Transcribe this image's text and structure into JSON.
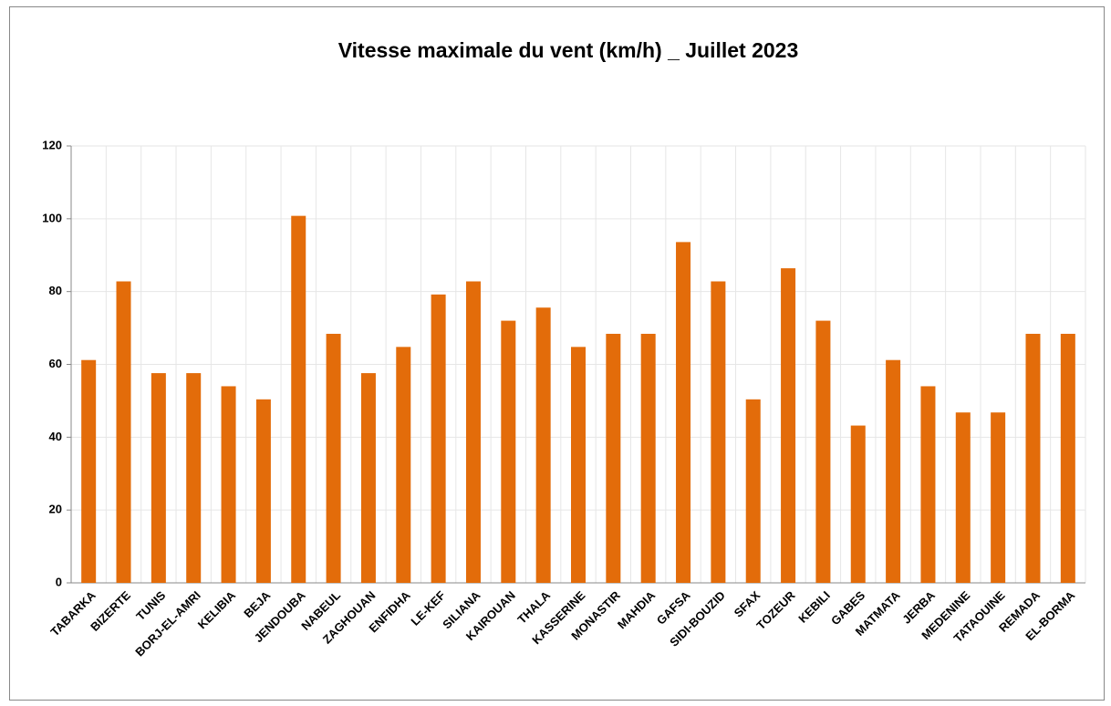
{
  "chart_data": {
    "type": "bar",
    "title": "Vitesse maximale du vent (km/h) _ Juillet 2023",
    "categories": [
      "TABARKA",
      "BIZERTE",
      "TUNIS",
      "BORJ-EL-AMRI",
      "KELIBIA",
      "BEJA",
      "JENDOUBA",
      "NABEUL",
      "ZAGHOUAN",
      "ENFIDHA",
      "LE-KEF",
      "SILIANA",
      "KAIROUAN",
      "THALA",
      "KASSERINE",
      "MONASTIR",
      "MAHDIA",
      "GAFSA",
      "SIDI-BOUZID",
      "SFAX",
      "TOZEUR",
      "KEBILI",
      "GABES",
      "MATMATA",
      "JERBA",
      "MEDENINE",
      "TATAOUINE",
      "REMADA",
      "EL-BORMA"
    ],
    "values": [
      61.2,
      82.8,
      57.6,
      57.6,
      54,
      50.4,
      100.8,
      68.4,
      57.6,
      64.8,
      79.2,
      82.8,
      72,
      75.6,
      64.8,
      68.4,
      68.4,
      93.6,
      82.8,
      50.4,
      86.4,
      72,
      43.2,
      61.2,
      54,
      46.8,
      46.8,
      68.4,
      68.4
    ],
    "color": "#e36c0a",
    "ylim": [
      0,
      120
    ],
    "yticks": [
      0,
      20,
      40,
      60,
      80,
      100,
      120
    ],
    "grid": true
  }
}
